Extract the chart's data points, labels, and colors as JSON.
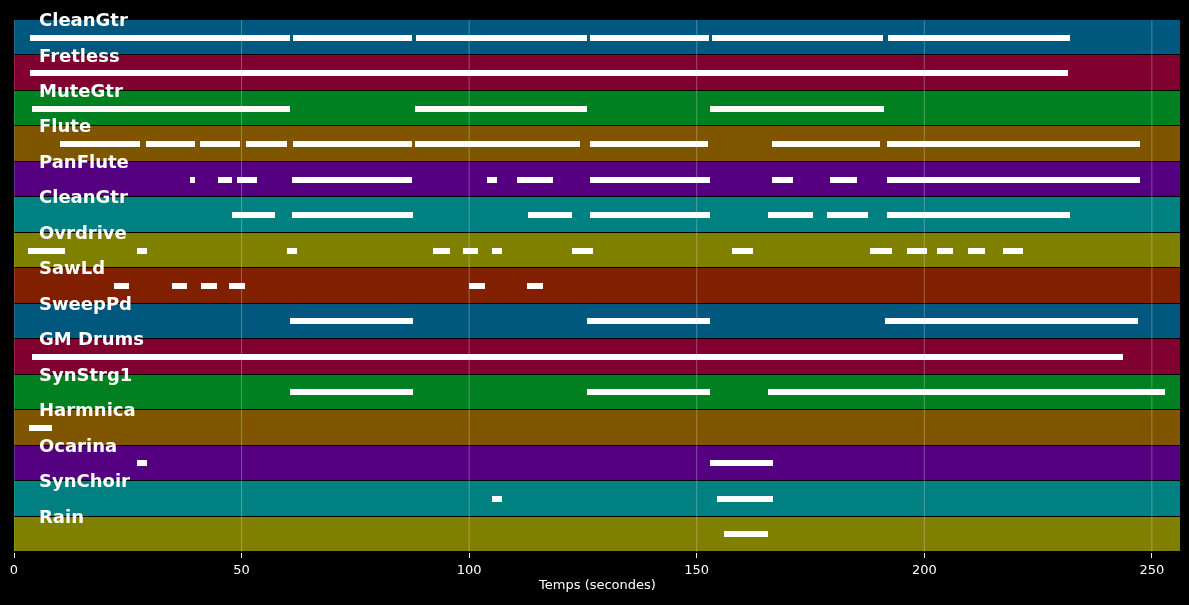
{
  "chart_data": {
    "type": "bar",
    "orientation": "horizontal",
    "xlabel": "Temps (secondes)",
    "categories": [
      "CleanGtr",
      "Fretless",
      "MuteGtr",
      "Flute",
      "PanFlute",
      "CleanGtr",
      "Ovrdrive",
      "SawLd",
      "SweepPd",
      "GM Drums",
      "SynStrg1",
      "Harmnica",
      "Ocarina",
      "SynChoir",
      "Rain"
    ],
    "xlim": [
      0,
      256.4
    ],
    "xticks": [
      0,
      50,
      100,
      150,
      200,
      250
    ],
    "grid": "x",
    "series": [
      {
        "colors": [
          "#00587f",
          "#800030",
          "#008020",
          "#805500",
          "#550080",
          "#008080",
          "#808000",
          "#802000",
          "#00587f",
          "#800030",
          "#008020",
          "#805500",
          "#550080",
          "#008080",
          "#808000"
        ],
        "base": [
          0,
          0,
          0,
          0,
          0,
          0,
          0,
          0,
          0,
          0,
          0,
          0,
          0,
          0,
          0
        ],
        "values": [
          256.4,
          256.4,
          256.4,
          256.4,
          256.4,
          256.4,
          256.4,
          256.4,
          256.4,
          256.4,
          256.4,
          256.4,
          256.4,
          256.4,
          256.4
        ]
      },
      {
        "color": "#ffffff",
        "base": [
          3.5,
          3.5,
          3.9,
          10.1,
          38.7,
          47.9,
          3.1,
          22.0,
          60.6,
          4.0,
          60.6,
          3.3,
          27.0,
          105.0,
          156.0
        ],
        "values": [
          57.1,
          228.0,
          56.7,
          17.6,
          1.1,
          9.4,
          8.1,
          3.3,
          27.1,
          239.6,
          27.1,
          5.0,
          2.2,
          2.2,
          9.6
        ]
      },
      {
        "color": "#ffffff",
        "base": [
          61.3,
          null,
          88.1,
          29.0,
          44.8,
          61.1,
          27.0,
          34.7,
          125.9,
          null,
          125.9,
          null,
          152.9,
          154.4,
          null
        ],
        "values": [
          26.1,
          null,
          37.8,
          10.8,
          3.1,
          26.6,
          2.2,
          3.3,
          27.0,
          null,
          27.0,
          null,
          13.8,
          12.3,
          null
        ]
      },
      {
        "color": "#ffffff",
        "base": [
          88.3,
          null,
          152.9,
          40.9,
          49.0,
          112.9,
          60.0,
          41.1,
          191.3,
          null,
          165.6,
          null,
          null,
          null,
          null
        ],
        "values": [
          37.6,
          null,
          38.2,
          8.7,
          4.4,
          9.7,
          2.2,
          3.5,
          55.6,
          null,
          79.6,
          null,
          null,
          null,
          null
        ]
      },
      {
        "color": "#ffffff",
        "base": [
          126.5,
          null,
          null,
          51.0,
          61.1,
          126.5,
          92.0,
          47.2,
          null,
          null,
          245.2,
          null,
          null,
          null,
          null
        ],
        "values": [
          26.2,
          null,
          null,
          9.0,
          26.3,
          26.4,
          3.8,
          3.5,
          null,
          null,
          7.7,
          null,
          null,
          null,
          null
        ]
      },
      {
        "color": "#ffffff",
        "base": [
          153.3,
          null,
          null,
          61.3,
          103.9,
          165.6,
          98.6,
          100.0,
          null,
          null,
          null,
          null,
          null,
          null,
          null
        ],
        "values": [
          37.6,
          null,
          null,
          26.1,
          2.2,
          9.9,
          3.3,
          3.5,
          null,
          null,
          null,
          null,
          null,
          null,
          null
        ]
      },
      {
        "color": "#ffffff",
        "base": [
          192.0,
          null,
          null,
          88.1,
          110.5,
          178.6,
          105.0,
          112.7,
          null,
          null,
          null,
          null,
          null,
          null,
          null
        ],
        "values": [
          40.0,
          null,
          null,
          36.2,
          7.9,
          9.0,
          2.2,
          3.5,
          null,
          null,
          null,
          null,
          null,
          null,
          null
        ]
      },
      {
        "color": "#ffffff",
        "base": [
          null,
          null,
          null,
          126.5,
          126.5,
          191.8,
          122.6,
          null,
          null,
          null,
          null,
          null,
          null,
          null,
          null
        ],
        "values": [
          null,
          null,
          null,
          26.0,
          26.4,
          40.2,
          4.6,
          null,
          null,
          null,
          null,
          null,
          null,
          null,
          null
        ]
      },
      {
        "color": "#ffffff",
        "base": [
          null,
          null,
          null,
          166.5,
          166.5,
          null,
          157.7,
          null,
          null,
          null,
          null,
          null,
          null,
          null,
          null
        ],
        "values": [
          null,
          null,
          null,
          23.7,
          4.6,
          null,
          4.6,
          null,
          null,
          null,
          null,
          null,
          null,
          null,
          null
        ]
      },
      {
        "color": "#ffffff",
        "base": [
          null,
          null,
          null,
          191.8,
          179.3,
          null,
          188.0,
          null,
          null,
          null,
          null,
          null,
          null,
          null,
          null
        ],
        "values": [
          null,
          null,
          null,
          55.6,
          5.9,
          null,
          4.9,
          null,
          null,
          null,
          null,
          null,
          null,
          null,
          null
        ]
      },
      {
        "color": "#ffffff",
        "base": [
          null,
          null,
          null,
          null,
          191.8,
          null,
          196.2,
          null,
          null,
          null,
          null,
          null,
          null,
          null,
          null
        ],
        "values": [
          null,
          null,
          null,
          null,
          55.6,
          null,
          4.4,
          null,
          null,
          null,
          null,
          null,
          null,
          null,
          null
        ]
      },
      {
        "color": "#ffffff",
        "base": [
          null,
          null,
          null,
          null,
          null,
          null,
          202.8,
          null,
          null,
          null,
          null,
          null,
          null,
          null,
          null
        ],
        "values": [
          null,
          null,
          null,
          null,
          null,
          null,
          3.5,
          null,
          null,
          null,
          null,
          null,
          null,
          null,
          null
        ]
      },
      {
        "color": "#ffffff",
        "base": [
          null,
          null,
          null,
          null,
          null,
          null,
          209.6,
          null,
          null,
          null,
          null,
          null,
          null,
          null,
          null
        ],
        "values": [
          null,
          null,
          null,
          null,
          null,
          null,
          3.7,
          null,
          null,
          null,
          null,
          null,
          null,
          null,
          null
        ]
      },
      {
        "color": "#ffffff",
        "base": [
          null,
          null,
          null,
          null,
          null,
          null,
          217.3,
          null,
          null,
          null,
          null,
          null,
          null,
          null,
          null
        ],
        "values": [
          null,
          null,
          null,
          null,
          null,
          null,
          4.4,
          null,
          null,
          null,
          null,
          null,
          null,
          null,
          null
        ]
      }
    ]
  }
}
